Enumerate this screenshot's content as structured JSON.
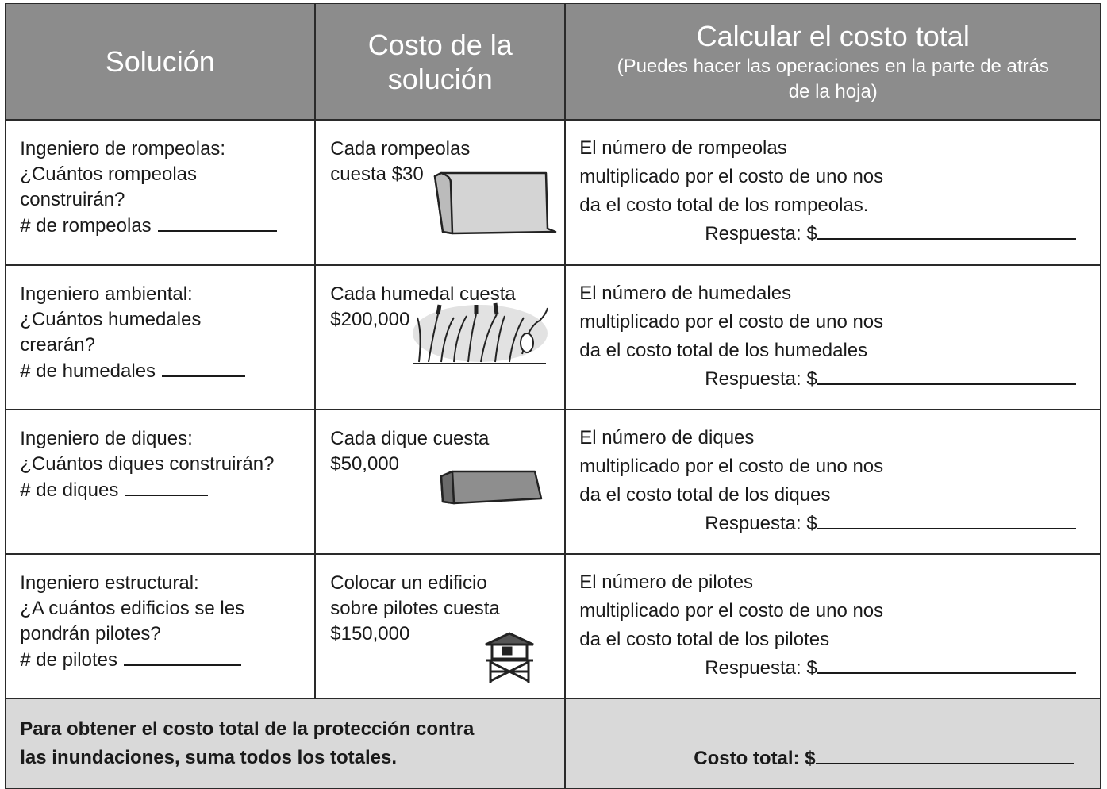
{
  "header": {
    "solution": "Solución",
    "cost_lines": [
      "Costo de la",
      "solución"
    ],
    "calc_title": "Calcular el costo total",
    "calc_note_lines": [
      "(Puedes hacer las operaciones en la parte de atrás",
      "de la hoja)"
    ]
  },
  "rows": [
    {
      "solution_lines": [
        "Ingeniero de rompeolas:",
        "¿Cuántos rompeolas",
        "construirán?",
        "# de rompeolas"
      ],
      "cost_lines": [
        "Cada rompeolas",
        "cuesta $30"
      ],
      "calc_lines": [
        "El número de rompeolas",
        "multiplicado por el costo de uno nos",
        "da el costo total de los rompeolas."
      ],
      "answer": "Respuesta: $"
    },
    {
      "solution_lines": [
        "Ingeniero ambiental:",
        "¿Cuántos humedales",
        "crearán?",
        "# de humedales"
      ],
      "cost_lines": [
        "Cada humedal cuesta",
        "$200,000"
      ],
      "calc_lines": [
        "El número de humedales",
        "multiplicado por el costo de uno nos",
        "da el costo total de los humedales"
      ],
      "answer": "Respuesta: $"
    },
    {
      "solution_lines": [
        "Ingeniero de diques:",
        "¿Cuántos diques construirán?",
        "# de diques"
      ],
      "cost_lines": [
        "Cada dique cuesta",
        "$50,000"
      ],
      "calc_lines": [
        "El número de diques",
        "multiplicado por el costo de uno nos",
        "da el costo total de los diques"
      ],
      "answer": "Respuesta: $"
    },
    {
      "solution_lines": [
        "Ingeniero estructural:",
        "¿A cuántos edificios se les",
        "pondrán pilotes?",
        "# de pilotes"
      ],
      "cost_lines": [
        "Colocar un edificio",
        "sobre pilotes cuesta",
        "$150,000"
      ],
      "calc_lines": [
        "El número de pilotes",
        "multiplicado por el costo de uno nos",
        "da el costo total de los pilotes"
      ],
      "answer": "Respuesta: $"
    }
  ],
  "footer": {
    "instruction_lines": [
      "Para obtener el costo total de la protección contra",
      "las inundaciones, suma todos los totales."
    ],
    "total_label": "Costo total: $"
  }
}
